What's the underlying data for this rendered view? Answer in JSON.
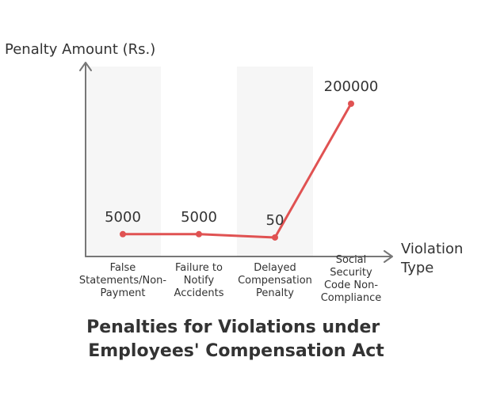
{
  "chart_data": {
    "type": "line",
    "title": "Penalties for Violations under Employees' Compensation Act",
    "ylabel": "Penalty Amount (Rs.)",
    "xlabel": "Violation Type",
    "xlabel_lines": [
      "Violation",
      "Type"
    ],
    "title_lines": [
      "Penalties for Violations under",
      "Employees' Compensation Act"
    ],
    "categories": [
      "False Statements/Non-Payment",
      "Failure to Notify Accidents",
      "Delayed Compensation Penalty",
      "Social Security Code Non-Compliance"
    ],
    "category_lines": [
      [
        "False",
        "Statements/Non-",
        "Payment"
      ],
      [
        "Failure to",
        "Notify",
        "Accidents"
      ],
      [
        "Delayed",
        "Compensation",
        "Penalty"
      ],
      [
        "Social",
        "Security",
        "Code Non-",
        "Compliance"
      ]
    ],
    "values": [
      5000,
      5000,
      50,
      200000
    ],
    "data_labels": [
      "5000",
      "5000",
      "50",
      "200000"
    ],
    "ylim": [
      0,
      240000
    ],
    "grid": false,
    "colors": {
      "line": "#e05252",
      "axis": "#777777",
      "band": "#f6f6f6",
      "text": "#333333"
    }
  }
}
